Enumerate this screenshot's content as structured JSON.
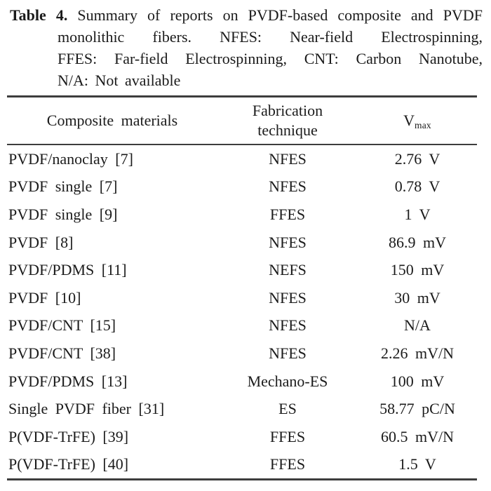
{
  "page": {
    "background": "#ffffff",
    "text_color": "#1b1b1b",
    "rule_color": "#3d3d3d"
  },
  "caption": {
    "label": "Table 4.",
    "lines": [
      "Summary of reports on PVDF-based composite and PVDF",
      "monolithic fibers. NFES: Near-field Electrospinning,",
      "FFES: Far-field Electrospinning, CNT: Carbon Nanotube,",
      "N/A: Not available"
    ]
  },
  "table": {
    "header": {
      "materials": "Composite materials",
      "technique": "Fabrication\ntechnique",
      "vmax_base": "V",
      "vmax_sub": "max"
    },
    "rows": [
      {
        "material": "PVDF/nanoclay [7]",
        "technique": "NFES",
        "vmax": "2.76 V"
      },
      {
        "material": "PVDF single [7]",
        "technique": "NFES",
        "vmax": "0.78 V"
      },
      {
        "material": "PVDF single [9]",
        "technique": "FFES",
        "vmax": "1 V"
      },
      {
        "material": "PVDF [8]",
        "technique": "NFES",
        "vmax": "86.9 mV"
      },
      {
        "material": "PVDF/PDMS [11]",
        "technique": "NEFS",
        "vmax": "150 mV"
      },
      {
        "material": "PVDF [10]",
        "technique": "NFES",
        "vmax": "30 mV"
      },
      {
        "material": "PVDF/CNT [15]",
        "technique": "NFES",
        "vmax": "N/A"
      },
      {
        "material": "PVDF/CNT [38]",
        "technique": "NFES",
        "vmax": "2.26 mV/N"
      },
      {
        "material": "PVDF/PDMS [13]",
        "technique": "Mechano-ES",
        "vmax": "100 mV"
      },
      {
        "material": "Single PVDF fiber [31]",
        "technique": "ES",
        "vmax": "58.77 pC/N"
      },
      {
        "material": "P(VDF-TrFE) [39]",
        "technique": "FFES",
        "vmax": "60.5 mV/N"
      },
      {
        "material": "P(VDF-TrFE) [40]",
        "technique": "FFES",
        "vmax": "1.5 V"
      }
    ]
  }
}
